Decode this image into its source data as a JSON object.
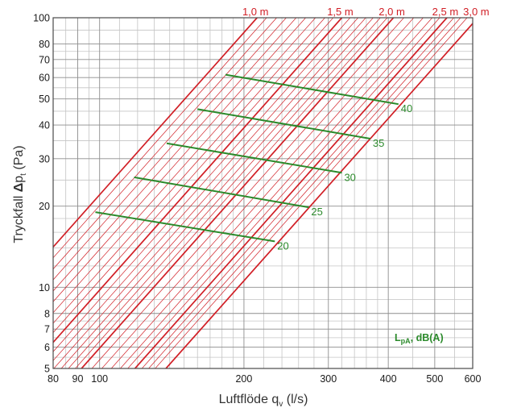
{
  "chart_data": {
    "type": "line",
    "scale": {
      "x": "log",
      "y": "log"
    },
    "xlim": [
      80,
      600
    ],
    "ylim": [
      5,
      100
    ],
    "grid": true,
    "x_ticks": [
      {
        "value": 80,
        "label": "80"
      },
      {
        "value": 90,
        "label": "90"
      },
      {
        "value": 100,
        "label": "100"
      },
      {
        "value": 200,
        "label": "200"
      },
      {
        "value": 300,
        "label": "300"
      },
      {
        "value": 400,
        "label": "400"
      },
      {
        "value": 500,
        "label": "500"
      },
      {
        "value": 600,
        "label": "600"
      }
    ],
    "y_ticks": [
      {
        "value": 5,
        "label": "5"
      },
      {
        "value": 6,
        "label": "6"
      },
      {
        "value": 7,
        "label": "7"
      },
      {
        "value": 8,
        "label": "8"
      },
      {
        "value": 10,
        "label": "10"
      },
      {
        "value": 20,
        "label": "20"
      },
      {
        "value": 30,
        "label": "30"
      },
      {
        "value": 40,
        "label": "40"
      },
      {
        "value": 50,
        "label": "50"
      },
      {
        "value": 60,
        "label": "60"
      },
      {
        "value": 70,
        "label": "70"
      },
      {
        "value": 80,
        "label": "80"
      },
      {
        "value": 100,
        "label": "100"
      }
    ],
    "x_minor_grid": [
      85,
      95,
      110,
      120,
      130,
      140,
      150,
      160,
      170,
      180,
      190,
      220,
      240,
      260,
      280,
      320,
      340,
      360,
      380,
      450,
      550
    ],
    "y_minor_grid": [
      5.5,
      6.5,
      7.5,
      9,
      12,
      14,
      16,
      18,
      25,
      35,
      45,
      55,
      65,
      75,
      90
    ],
    "xlabel": {
      "main": "Luftflöde q",
      "sub": "v",
      "unit": " (l/s)"
    },
    "ylabel": {
      "main": "Tryckfall ",
      "delta": "Δ",
      "p": "p",
      "sub": "t",
      "unit": " (Pa)"
    },
    "length_curves": {
      "color": "#d11f26",
      "exponent": 2.0,
      "labeled": [
        {
          "label": "1,0 m",
          "x": 213,
          "y": 100
        },
        {
          "label": "1,5 m",
          "x": 320,
          "y": 100
        },
        {
          "label": "2,0 m",
          "x": 410,
          "y": 100
        },
        {
          "label": "2,5 m",
          "x": 530,
          "y": 100
        },
        {
          "label": "3,0 m",
          "x": 615,
          "y": 100
        }
      ],
      "intermediate_x_at_top": [
        223,
        234,
        245,
        257,
        269,
        282,
        295,
        307,
        333,
        346,
        359,
        372,
        385,
        398,
        431,
        452,
        473,
        494,
        512,
        548,
        566,
        584
      ]
    },
    "sound_series": {
      "color": "#2b8a2b",
      "legend": {
        "main": "L",
        "sub": "pA",
        "unit": ", dB(A)"
      },
      "lines": [
        {
          "label": "20",
          "points": [
            {
              "x": 98,
              "y": 19.0
            },
            {
              "x": 232,
              "y": 14.8
            }
          ]
        },
        {
          "label": "25",
          "points": [
            {
              "x": 118,
              "y": 25.6
            },
            {
              "x": 273,
              "y": 19.8
            }
          ]
        },
        {
          "label": "30",
          "points": [
            {
              "x": 138,
              "y": 34.2
            },
            {
              "x": 320,
              "y": 26.6
            }
          ]
        },
        {
          "label": "35",
          "points": [
            {
              "x": 160,
              "y": 45.8
            },
            {
              "x": 367,
              "y": 35.6
            }
          ]
        },
        {
          "label": "40",
          "points": [
            {
              "x": 183,
              "y": 61.5
            },
            {
              "x": 420,
              "y": 47.8
            }
          ]
        }
      ]
    }
  }
}
